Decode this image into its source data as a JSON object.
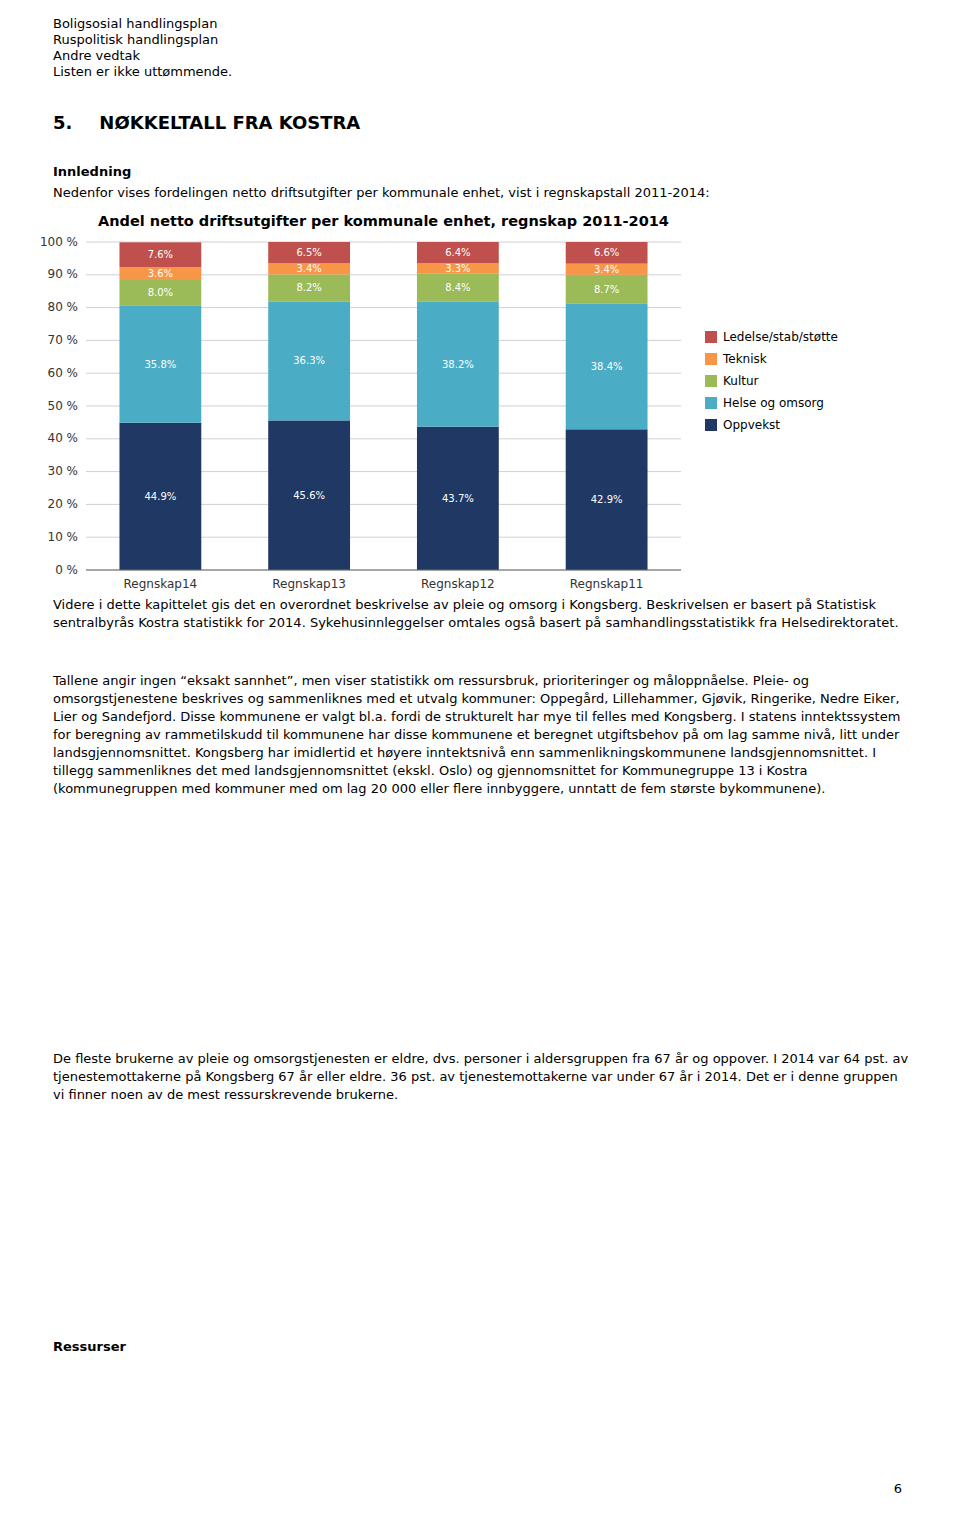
{
  "header_lines": [
    "Boligsosial handlingsplan",
    "Ruspolitisk handlingsplan",
    "Andre vedtak",
    "Listen er ikke uttømmende."
  ],
  "section_title": "5.   NØKKELTALL FRA KOSTRA",
  "intro_heading": "Innledning",
  "intro_text": "Nedenfor vises fordelingen netto driftsutgifter per kommunale enhet, vist i regnskapstall 2011-2014:",
  "chart_data": {
    "type": "bar",
    "title": "Andel netto driftsutgifter per kommunale enhet, regnskap 2011-2014",
    "categories": [
      "Regnskap14",
      "Regnskap13",
      "Regnskap12",
      "Regnskap11"
    ],
    "stacked": true,
    "data_labels": true,
    "grid": true,
    "legend": "right",
    "series": [
      {
        "name": "Oppvekst",
        "color": "#1F3864",
        "values": [
          44.9,
          45.6,
          43.7,
          42.9
        ],
        "value_labels": [
          "44.9%",
          "45.6%",
          "43.7%",
          "42.9%"
        ]
      },
      {
        "name": "Helse og omsorg",
        "color": "#4BACC6",
        "values": [
          35.8,
          36.3,
          38.2,
          38.4
        ],
        "value_labels": [
          "35.8%",
          "36.3%",
          "38.2%",
          "38.4%"
        ]
      },
      {
        "name": "Kultur",
        "color": "#9BBB59",
        "values": [
          8.0,
          8.2,
          8.4,
          8.7
        ],
        "value_labels": [
          "8.0%",
          "8.2%",
          "8.4%",
          "8.7%"
        ]
      },
      {
        "name": "Teknisk",
        "color": "#F79646",
        "values": [
          3.6,
          3.4,
          3.3,
          3.4
        ],
        "value_labels": [
          "3.6%",
          "3.4%",
          "3.3%",
          "3.4%"
        ]
      },
      {
        "name": "Ledelse/stab/støtte",
        "color": "#C0504D",
        "values": [
          7.6,
          6.5,
          6.4,
          6.6
        ],
        "value_labels": [
          "7.6%",
          "6.5%",
          "6.4%",
          "6.6%"
        ]
      }
    ],
    "ylim": [
      0,
      100
    ],
    "yticks": [
      {
        "value": 0,
        "label": "0 %"
      },
      {
        "value": 10,
        "label": "10 %"
      },
      {
        "value": 20,
        "label": "20 %"
      },
      {
        "value": 30,
        "label": "30 %"
      },
      {
        "value": 40,
        "label": "40 %"
      },
      {
        "value": 50,
        "label": "50 %"
      },
      {
        "value": 60,
        "label": "60 %"
      },
      {
        "value": 70,
        "label": "70 %"
      },
      {
        "value": 80,
        "label": "80 %"
      },
      {
        "value": 90,
        "label": "90 %"
      },
      {
        "value": 100,
        "label": "100 %"
      }
    ]
  },
  "body_paragraphs": [
    "Videre i dette kapittelet gis det en overordnet beskrivelse av pleie og omsorg i Kongsberg. Beskrivelsen er basert på Statistisk sentralbyrås Kostra statistikk for 2014. Sykehusinnleggelser omtales også basert på samhandlingsstatistikk fra Helsedirektoratet.",
    "Tallene angir ingen “eksakt sannhet”, men viser statistikk om ressursbruk, prioriteringer og måloppnåelse. Pleie- og omsorgstjenestene beskrives og sammenliknes med et utvalg kommuner: Oppegård, Lillehammer, Gjøvik, Ringerike, Nedre Eiker, Lier og Sandefjord. Disse kommunene er valgt bl.a. fordi de strukturelt har mye til felles med Kongsberg. I statens inntektssystem for beregning av rammetilskudd til kommunene har disse kommunene et beregnet utgiftsbehov på om lag samme nivå, litt under landsgjennomsnittet. Kongsberg har imidlertid et høyere inntektsnivå enn sammenlikningskommunene landsgjennomsnittet. I tillegg sammenliknes det med landsgjennomsnittet (ekskl. Oslo) og gjennomsnittet for Kommunegruppe 13 i Kostra (kommunegruppen med kommuner med om lag 20 000 eller flere innbyggere, unntatt de fem største bykommunene).",
    "De fleste brukerne av pleie og omsorgstjenesten er eldre, dvs. personer i aldersgruppen fra 67 år og oppover. I 2014 var 64 pst. av tjenestemottakerne på Kongsberg 67 år eller eldre. 36 pst. av tjenestemottakerne var under 67 år i 2014. Det er i denne gruppen vi finner noen av de mest ressurskrevende brukerne."
  ],
  "footer_heading": "Ressurser",
  "page_number": "6"
}
